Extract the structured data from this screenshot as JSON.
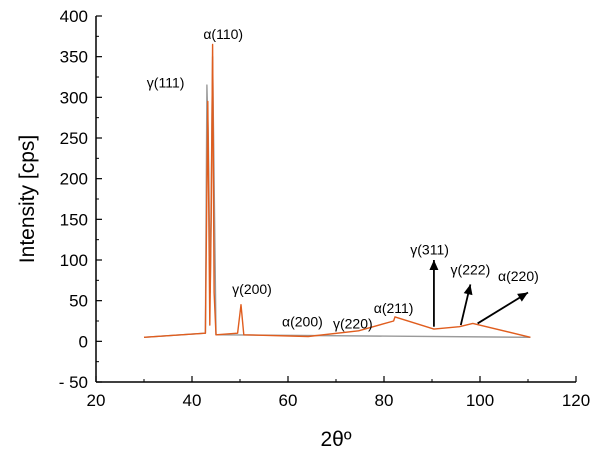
{
  "chart_data": {
    "type": "line",
    "xlabel": "2θº",
    "ylabel": "Intensity [cps]",
    "xlim": [
      20,
      120
    ],
    "ylim": [
      -50,
      400
    ],
    "x_ticks": [
      20,
      40,
      60,
      80,
      100,
      120
    ],
    "y_ticks": [
      -50,
      0,
      50,
      100,
      150,
      200,
      250,
      300,
      350,
      400
    ],
    "y_tick_labels": [
      "- 50",
      "0",
      "50",
      "100",
      "150",
      "200",
      "250",
      "300",
      "350",
      "400"
    ],
    "grid": false,
    "series": [
      {
        "color": "#e05d1e",
        "x": [
          30,
          42.8,
          43.3,
          43.7,
          44.0,
          44.3,
          44.6,
          45.0,
          49.5,
          50.2,
          50.8,
          64.2,
          74.7,
          82.0,
          82.3,
          90.4,
          95.7,
          98.5,
          110.5
        ],
        "y": [
          5,
          10,
          295,
          20,
          150,
          365,
          60,
          8,
          10,
          45,
          8,
          6,
          13,
          25,
          30,
          15,
          18,
          22,
          5
        ]
      },
      {
        "color": "#9a9a9a",
        "x": [
          30,
          42.8,
          43.1,
          43.4,
          43.8,
          44.3,
          45.0,
          110.5
        ],
        "y": [
          5,
          10,
          315,
          250,
          60,
          350,
          8,
          5
        ]
      }
    ],
    "annotations": [
      {
        "text": "α(110)",
        "x": 46.5,
        "y": 372
      },
      {
        "text": "γ(111)",
        "x": 34.5,
        "y": 312
      },
      {
        "text": "γ(200)",
        "x": 52.5,
        "y": 58
      },
      {
        "text": "α(200)",
        "x": 63.0,
        "y": 18
      },
      {
        "text": "γ(220)",
        "x": 73.5,
        "y": 16
      },
      {
        "text": "α(211)",
        "x": 82.0,
        "y": 35
      },
      {
        "text": "γ(311)",
        "x": 89.5,
        "y": 107
      },
      {
        "text": "γ(222)",
        "x": 98.0,
        "y": 82
      },
      {
        "text": "α(220)",
        "x": 108.0,
        "y": 74
      }
    ],
    "arrows": [
      {
        "from": [
          90.4,
          18
        ],
        "to": [
          90.4,
          100
        ]
      },
      {
        "from": [
          96.0,
          20
        ],
        "to": [
          98.0,
          70
        ]
      },
      {
        "from": [
          99.5,
          22
        ],
        "to": [
          110.0,
          60
        ]
      }
    ]
  }
}
